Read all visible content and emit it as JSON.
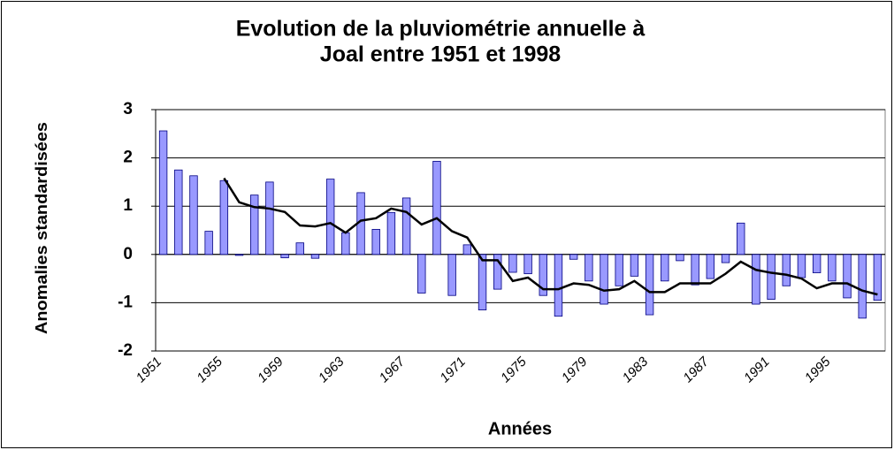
{
  "chart_data": {
    "type": "bar",
    "title": [
      "Evolution de la pluviométrie annuelle à",
      "Joal entre 1951 et 1998"
    ],
    "x_label": "Années",
    "y_label": "Anomalies standardisées",
    "categories": [
      "1951",
      null,
      null,
      null,
      "1955",
      null,
      null,
      null,
      "1959",
      null,
      null,
      null,
      "1963",
      null,
      null,
      null,
      "1967",
      null,
      null,
      null,
      "1971",
      null,
      null,
      null,
      "1975",
      null,
      null,
      null,
      "1979",
      null,
      null,
      null,
      "1983",
      null,
      null,
      null,
      "1987",
      null,
      null,
      null,
      "1991",
      null,
      null,
      null,
      "1995",
      null,
      null,
      null
    ],
    "series": [
      {
        "type": "bar",
        "color": "#9999ff",
        "values": [
          2.56,
          1.75,
          1.63,
          0.48,
          1.53,
          -0.02,
          1.23,
          1.5,
          -0.07,
          0.24,
          -0.08,
          1.56,
          0.45,
          1.28,
          0.52,
          0.87,
          1.17,
          -0.8,
          1.93,
          -0.85,
          0.2,
          -1.15,
          -0.72,
          -0.37,
          -0.4,
          -0.85,
          -1.28,
          -0.1,
          -0.55,
          -1.03,
          -0.65,
          -0.45,
          -1.25,
          -0.55,
          -0.13,
          -0.63,
          -0.5,
          -0.17,
          0.65,
          -1.03,
          -0.93,
          -0.65,
          -0.48,
          -0.38,
          -0.55,
          -0.9,
          -1.32,
          -0.95
        ]
      },
      {
        "type": "line",
        "color": "#000000",
        "values": [
          null,
          null,
          null,
          null,
          1.58,
          1.08,
          0.98,
          0.95,
          0.88,
          0.6,
          0.58,
          0.65,
          0.45,
          0.7,
          0.75,
          0.95,
          0.88,
          0.62,
          0.75,
          0.48,
          0.35,
          -0.12,
          -0.12,
          -0.55,
          -0.48,
          -0.72,
          -0.72,
          -0.6,
          -0.63,
          -0.75,
          -0.72,
          -0.55,
          -0.78,
          -0.78,
          -0.6,
          -0.6,
          -0.6,
          -0.4,
          -0.15,
          -0.32,
          -0.38,
          -0.42,
          -0.5,
          -0.7,
          -0.6,
          -0.6,
          -0.75,
          -0.83
        ]
      }
    ],
    "ylim": [
      -2,
      3
    ],
    "yticks": [
      -2,
      -1,
      0,
      1,
      2,
      3
    ],
    "grid": true
  }
}
